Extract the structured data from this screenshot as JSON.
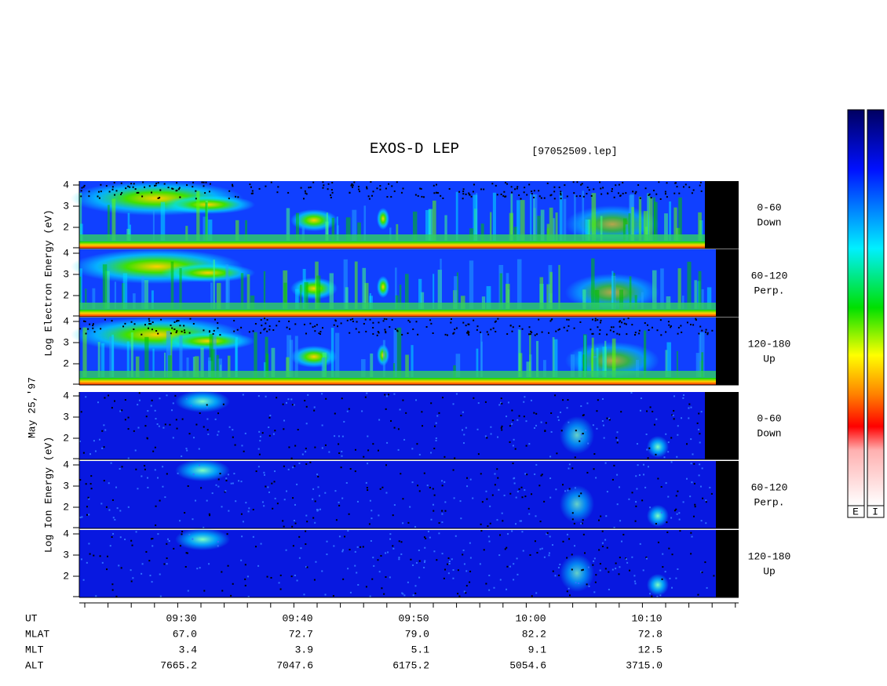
{
  "title": "EXOS-D LEP",
  "file": "[97052509.lep]",
  "date": "May 25,'97",
  "groups": [
    {
      "axis_label": "Log Electron Energy (eV)",
      "kind": "electron",
      "panels": [
        {
          "yticks": [
            2,
            3,
            4
          ],
          "labels": [
            "0-60",
            "Down"
          ]
        },
        {
          "yticks": [
            2,
            3,
            4
          ],
          "labels": [
            "60-120",
            "Perp."
          ]
        },
        {
          "yticks": [
            2,
            3,
            4
          ],
          "labels": [
            "120-180",
            "Up"
          ]
        }
      ]
    },
    {
      "axis_label": "Log Ion Energy (eV)",
      "kind": "ion",
      "panels": [
        {
          "yticks": [
            2,
            3,
            4
          ],
          "labels": [
            "0-60",
            "Down"
          ]
        },
        {
          "yticks": [
            2,
            3,
            4
          ],
          "labels": [
            "60-120",
            "Perp."
          ]
        },
        {
          "yticks": [
            2,
            3,
            4
          ],
          "labels": [
            "120-180",
            "Up"
          ]
        }
      ]
    }
  ],
  "time_axis": {
    "rows": [
      {
        "name": "UT",
        "values": [
          "09:30",
          "09:40",
          "09:50",
          "10:00",
          "10:10"
        ]
      },
      {
        "name": "MLAT",
        "values": [
          "67.0",
          "72.7",
          "79.0",
          "82.2",
          "72.8"
        ]
      },
      {
        "name": "MLT",
        "values": [
          "3.4",
          "3.9",
          "5.1",
          "9.1",
          "12.5"
        ]
      },
      {
        "name": "ALT",
        "values": [
          "7665.2",
          "7047.6",
          "6175.2",
          "5054.6",
          "3715.0"
        ]
      }
    ]
  },
  "colorbar_labels": [
    "E",
    "I"
  ]
}
